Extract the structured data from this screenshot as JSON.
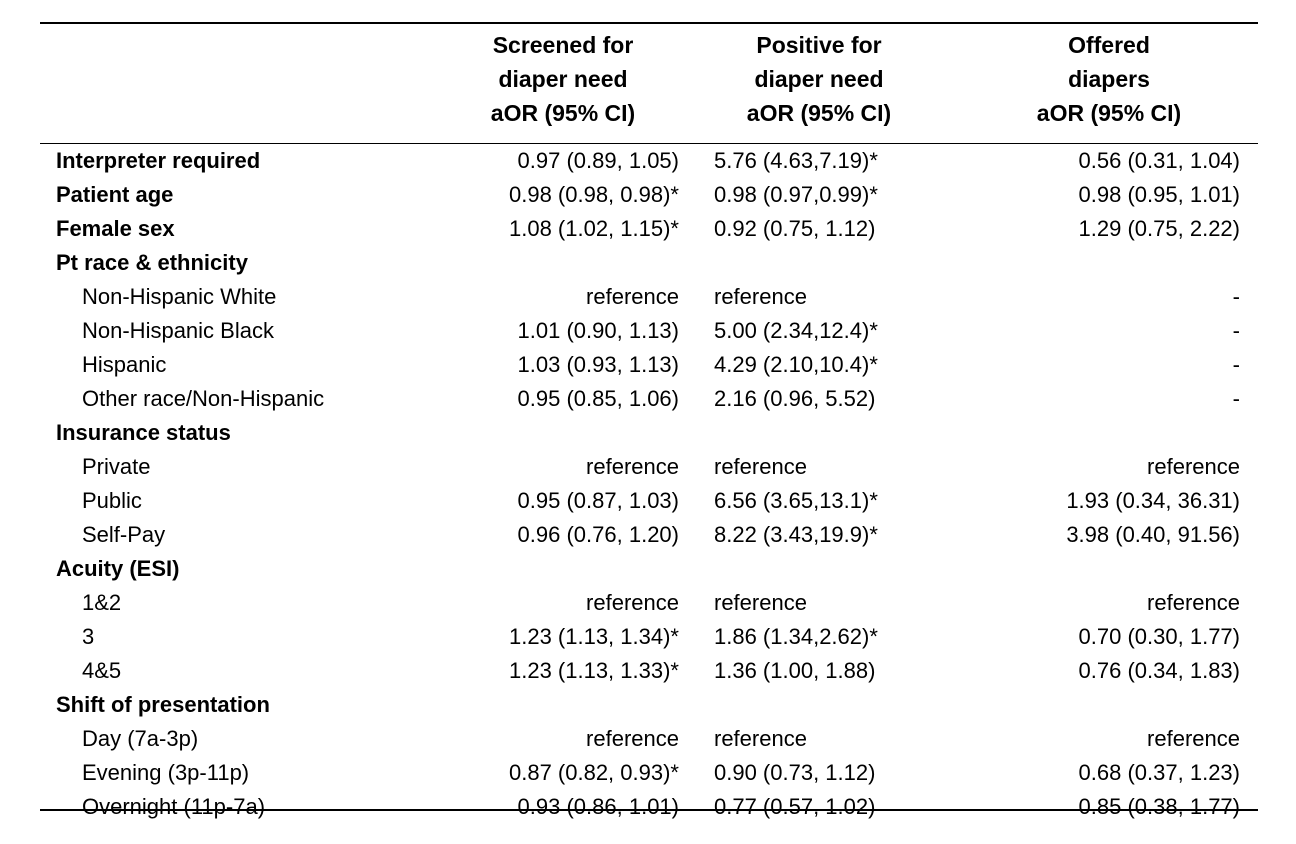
{
  "header": {
    "col1": [
      "Screened for",
      "diaper need",
      "aOR (95% CI)"
    ],
    "col2": [
      "Positive for",
      "diaper need",
      "aOR (95% CI)"
    ],
    "col3": [
      "Offered",
      "diapers",
      "aOR (95% CI)"
    ]
  },
  "rows": [
    {
      "label": "Interpreter required",
      "type": "cat",
      "c1": "0.97 (0.89, 1.05)",
      "c2": "5.76 (4.63,7.19)*",
      "c3": "0.56 (0.31, 1.04)"
    },
    {
      "label": "Patient age",
      "type": "cat",
      "c1": "0.98 (0.98, 0.98)*",
      "c2": "0.98 (0.97,0.99)*",
      "c3": "0.98 (0.95, 1.01)"
    },
    {
      "label": "Female sex",
      "type": "cat",
      "c1": "1.08 (1.02, 1.15)*",
      "c2": "0.92 (0.75, 1.12)",
      "c3": "1.29 (0.75, 2.22)"
    },
    {
      "label": "Pt race & ethnicity",
      "type": "cat",
      "c1": "",
      "c2": "",
      "c3": ""
    },
    {
      "label": "Non-Hispanic White",
      "type": "sub",
      "c1": "reference",
      "c2": "reference",
      "c3": "-"
    },
    {
      "label": "Non-Hispanic Black",
      "type": "sub",
      "c1": "1.01 (0.90, 1.13)",
      "c2": "5.00 (2.34,12.4)*",
      "c3": "-"
    },
    {
      "label": "Hispanic",
      "type": "sub",
      "c1": "1.03 (0.93, 1.13)",
      "c2": "4.29 (2.10,10.4)*",
      "c3": "-"
    },
    {
      "label": "Other race/Non-Hispanic",
      "type": "sub",
      "c1": "0.95 (0.85, 1.06)",
      "c2": "2.16 (0.96, 5.52)",
      "c3": "-"
    },
    {
      "label": "Insurance status",
      "type": "cat",
      "c1": "",
      "c2": "",
      "c3": ""
    },
    {
      "label": "Private",
      "type": "sub",
      "c1": "reference",
      "c2": "reference",
      "c3": "reference"
    },
    {
      "label": "Public",
      "type": "sub",
      "c1": "0.95 (0.87, 1.03)",
      "c2": "6.56 (3.65,13.1)*",
      "c3": "1.93 (0.34, 36.31)"
    },
    {
      "label": "Self-Pay",
      "type": "sub",
      "c1": "0.96 (0.76, 1.20)",
      "c2": "8.22 (3.43,19.9)*",
      "c3": "3.98 (0.40, 91.56)"
    },
    {
      "label": "Acuity (ESI)",
      "type": "cat",
      "c1": "",
      "c2": "",
      "c3": ""
    },
    {
      "label": "1&2",
      "type": "sub",
      "c1": "reference",
      "c2": "reference",
      "c3": "reference"
    },
    {
      "label": "3",
      "type": "sub",
      "c1": "1.23 (1.13, 1.34)*",
      "c2": "1.86 (1.34,2.62)*",
      "c3": "0.70 (0.30, 1.77)"
    },
    {
      "label": "4&5",
      "type": "sub",
      "c1": "1.23 (1.13, 1.33)*",
      "c2": "1.36 (1.00, 1.88)",
      "c3": "0.76 (0.34, 1.83)"
    },
    {
      "label": "Shift of presentation",
      "type": "cat",
      "c1": "",
      "c2": "",
      "c3": ""
    },
    {
      "label": "Day (7a-3p)",
      "type": "sub",
      "c1": "reference",
      "c2": "reference",
      "c3": "reference"
    },
    {
      "label": "Evening (3p-11p)",
      "type": "sub",
      "c1": "0.87 (0.82, 0.93)*",
      "c2": "0.90 (0.73, 1.12)",
      "c3": "0.68 (0.37, 1.23)"
    },
    {
      "label": "Overnight (11p-7a)",
      "type": "sub",
      "c1": "0.93 (0.86, 1.01)",
      "c2": "0.77 (0.57, 1.02)",
      "c3": "0.85 (0.38, 1.77)"
    }
  ]
}
